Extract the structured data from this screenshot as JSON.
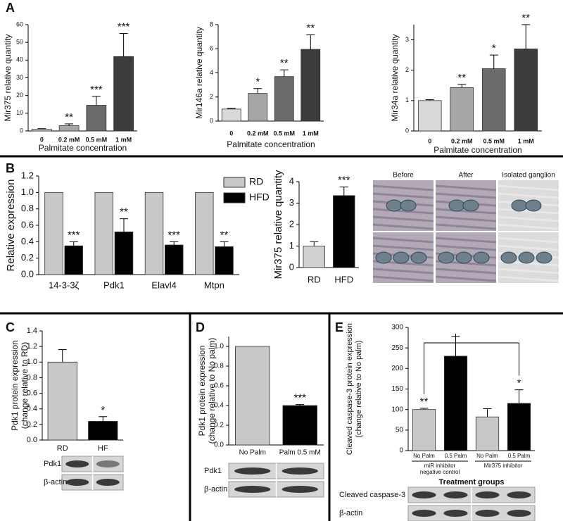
{
  "panel_labels": [
    "A",
    "B",
    "C",
    "D",
    "E"
  ],
  "micrograph_labels": [
    "Before",
    "After",
    "Isolated ganglion"
  ],
  "chart_data": [
    {
      "type": "bar",
      "ylabel": [
        "Mir375 relative quantity"
      ],
      "xlabel": "Palmitate concentration",
      "categories": [
        "0",
        "0.2 mM",
        "0.5 mM",
        "1 mM"
      ],
      "values": [
        1,
        3,
        14.5,
        42
      ],
      "errors": [
        0.3,
        1,
        5,
        13
      ],
      "colors": [
        "#d9d9d9",
        "#a6a6a6",
        "#6b6b6b",
        "#3c3c3c"
      ],
      "significance": [
        null,
        "**",
        "***",
        "***"
      ],
      "ylim": [
        0,
        60
      ],
      "yticks": [
        0,
        10,
        20,
        30,
        40,
        50,
        60
      ]
    },
    {
      "type": "bar",
      "ylabel": [
        "Mir146a relative quantity"
      ],
      "xlabel": "Palmitate concentration",
      "categories": [
        "0",
        "0.2 mM",
        "0.5 mM",
        "1 mM"
      ],
      "values": [
        1,
        2.3,
        3.7,
        5.95
      ],
      "errors": [
        0.05,
        0.4,
        0.55,
        1.2
      ],
      "colors": [
        "#d9d9d9",
        "#a6a6a6",
        "#6b6b6b",
        "#3c3c3c"
      ],
      "significance": [
        null,
        "*",
        "**",
        "**"
      ],
      "ylim": [
        0,
        8
      ],
      "yticks": [
        0,
        2,
        4,
        6,
        8
      ]
    },
    {
      "type": "bar",
      "ylabel": [
        "Mir34a relative quantity"
      ],
      "xlabel": "Palmitate concentration",
      "categories": [
        "0",
        "0.2 mM",
        "0.5 mM",
        "1 mM"
      ],
      "values": [
        1,
        1.43,
        2.05,
        2.7
      ],
      "errors": [
        0.03,
        0.1,
        0.45,
        0.8
      ],
      "colors": [
        "#d9d9d9",
        "#a6a6a6",
        "#6b6b6b",
        "#3c3c3c"
      ],
      "significance": [
        null,
        "**",
        "*",
        "**"
      ],
      "ylim": [
        0,
        3.5
      ],
      "yticks": [
        0,
        1,
        2,
        3
      ]
    },
    {
      "type": "grouped-bar",
      "ylabel": [
        "Relative expression"
      ],
      "categories": [
        "14-3-3ζ",
        "Pdk1",
        "Elavl4",
        "Mtpn"
      ],
      "series": [
        {
          "name": "RD",
          "color": "#c8c8c8",
          "values": [
            1,
            1,
            1,
            1
          ]
        },
        {
          "name": "HFD",
          "color": "#000000",
          "values": [
            0.35,
            0.52,
            0.36,
            0.34
          ],
          "errors": [
            0.05,
            0.16,
            0.04,
            0.06
          ],
          "significance": [
            "***",
            "**",
            "***",
            "**"
          ]
        }
      ],
      "legend": "top-right",
      "ylim": [
        0,
        1.2
      ],
      "yticks": [
        {
          "value": 0,
          "label": "0.0"
        },
        0.2,
        0.4,
        0.6,
        0.8,
        {
          "value": 1,
          "label": "1.0"
        },
        1.2
      ]
    },
    {
      "type": "bar",
      "ylabel": [
        "Mir375 relative quantity"
      ],
      "categories": [
        "RD",
        "HFD"
      ],
      "values": [
        1,
        3.35
      ],
      "errors": [
        0.2,
        0.4
      ],
      "colors": [
        "#d0d0d0",
        "#000000"
      ],
      "significance": [
        null,
        "***"
      ],
      "ylim": [
        0,
        4
      ],
      "yticks": [
        0,
        1,
        2,
        3,
        4
      ]
    },
    {
      "type": "bar",
      "ylabel": [
        "Pdk1 protein expression",
        "(change relative to RD)"
      ],
      "categories": [
        "RD",
        "HF"
      ],
      "values": [
        1,
        0.24
      ],
      "errors": [
        0.16,
        0.06
      ],
      "colors": [
        "#c8c8c8",
        "#000000"
      ],
      "significance": [
        null,
        "*"
      ],
      "ylim": [
        0,
        1.4
      ],
      "yticks": [
        {
          "value": 0,
          "label": "0.0"
        },
        0.2,
        0.4,
        0.6,
        0.8,
        {
          "value": 1,
          "label": "1.0"
        },
        1.2,
        1.4
      ],
      "blot_labels": [
        "Pdk1",
        "β-actin"
      ]
    },
    {
      "type": "bar",
      "ylabel": [
        "Pdk1 protein expression",
        "(change relative to  No palm)"
      ],
      "categories": [
        "No Palm",
        "Palm 0.5 mM"
      ],
      "values": [
        1,
        0.4
      ],
      "errors": [
        null,
        0.01
      ],
      "colors": [
        "#c8c8c8",
        "#000000"
      ],
      "significance": [
        null,
        "***"
      ],
      "ylim": [
        0,
        1.1
      ],
      "yticks": [
        {
          "value": 0,
          "label": "0.0"
        },
        0.2,
        0.4,
        0.6,
        0.8,
        {
          "value": 1,
          "label": "1.0"
        }
      ],
      "blot_labels": [
        "Pdk1",
        "β-actin"
      ]
    },
    {
      "type": "bar",
      "ylabel": [
        "Cleaved caspase-3 protein expression",
        "(change relative to  No palm)"
      ],
      "xlabel": "Treatment groups",
      "categories": [
        "No Palm",
        "0.5 Palm",
        "No Palm",
        "0.5 Palm"
      ],
      "values": [
        100,
        230,
        82,
        115
      ],
      "errors": [
        3,
        48,
        20,
        33
      ],
      "group_labels": [
        [
          "miR inhibitor",
          "negative control"
        ],
        [
          "Mir375  inhibitor"
        ]
      ],
      "colors": [
        "#c8c8c8",
        "#000000",
        "#c8c8c8",
        "#000000"
      ],
      "significance": [
        "**",
        null,
        null,
        "*"
      ],
      "ylim": [
        0,
        300
      ],
      "yticks": [
        0,
        50,
        100,
        150,
        200,
        250,
        300
      ],
      "blot_labels": [
        "Cleaved  caspase-3",
        "β-actin"
      ]
    }
  ]
}
